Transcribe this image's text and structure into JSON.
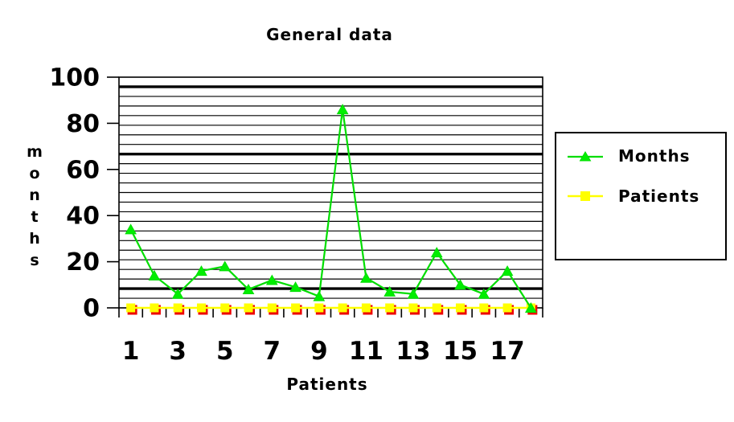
{
  "chart_data": {
    "type": "line",
    "title": "General data",
    "xlabel": "Patients",
    "ylabel": "months",
    "categories": [
      1,
      2,
      3,
      4,
      5,
      6,
      7,
      8,
      9,
      10,
      11,
      12,
      13,
      14,
      15,
      16,
      17,
      18
    ],
    "x_tick_labels": [
      "1",
      "3",
      "5",
      "7",
      "9",
      "11",
      "13",
      "15",
      "17"
    ],
    "ylim": [
      0,
      100
    ],
    "y_ticks": [
      0,
      20,
      40,
      60,
      80,
      100
    ],
    "grid": {
      "minor_intervals": 24,
      "thick_slots": [
        1,
        8,
        22
      ]
    },
    "legend_position": "right",
    "series": [
      {
        "name": "Months",
        "marker": "triangle",
        "color": "#00dd00",
        "marker_fill": "#00ee00",
        "values": [
          34,
          14,
          6,
          16,
          18,
          8,
          12,
          9,
          5,
          86,
          13,
          7,
          6,
          24,
          10,
          6,
          16,
          0
        ]
      },
      {
        "name": "Patients",
        "marker": "square",
        "color": "#ffff00",
        "marker_fill": "#ffff00",
        "values": [
          0,
          0,
          0,
          0,
          0,
          0,
          0,
          0,
          0,
          0,
          0,
          0,
          0,
          0,
          0,
          0,
          0,
          0
        ]
      }
    ],
    "artifact_marker_color": "#ee0000",
    "axis_color": "#000000"
  }
}
